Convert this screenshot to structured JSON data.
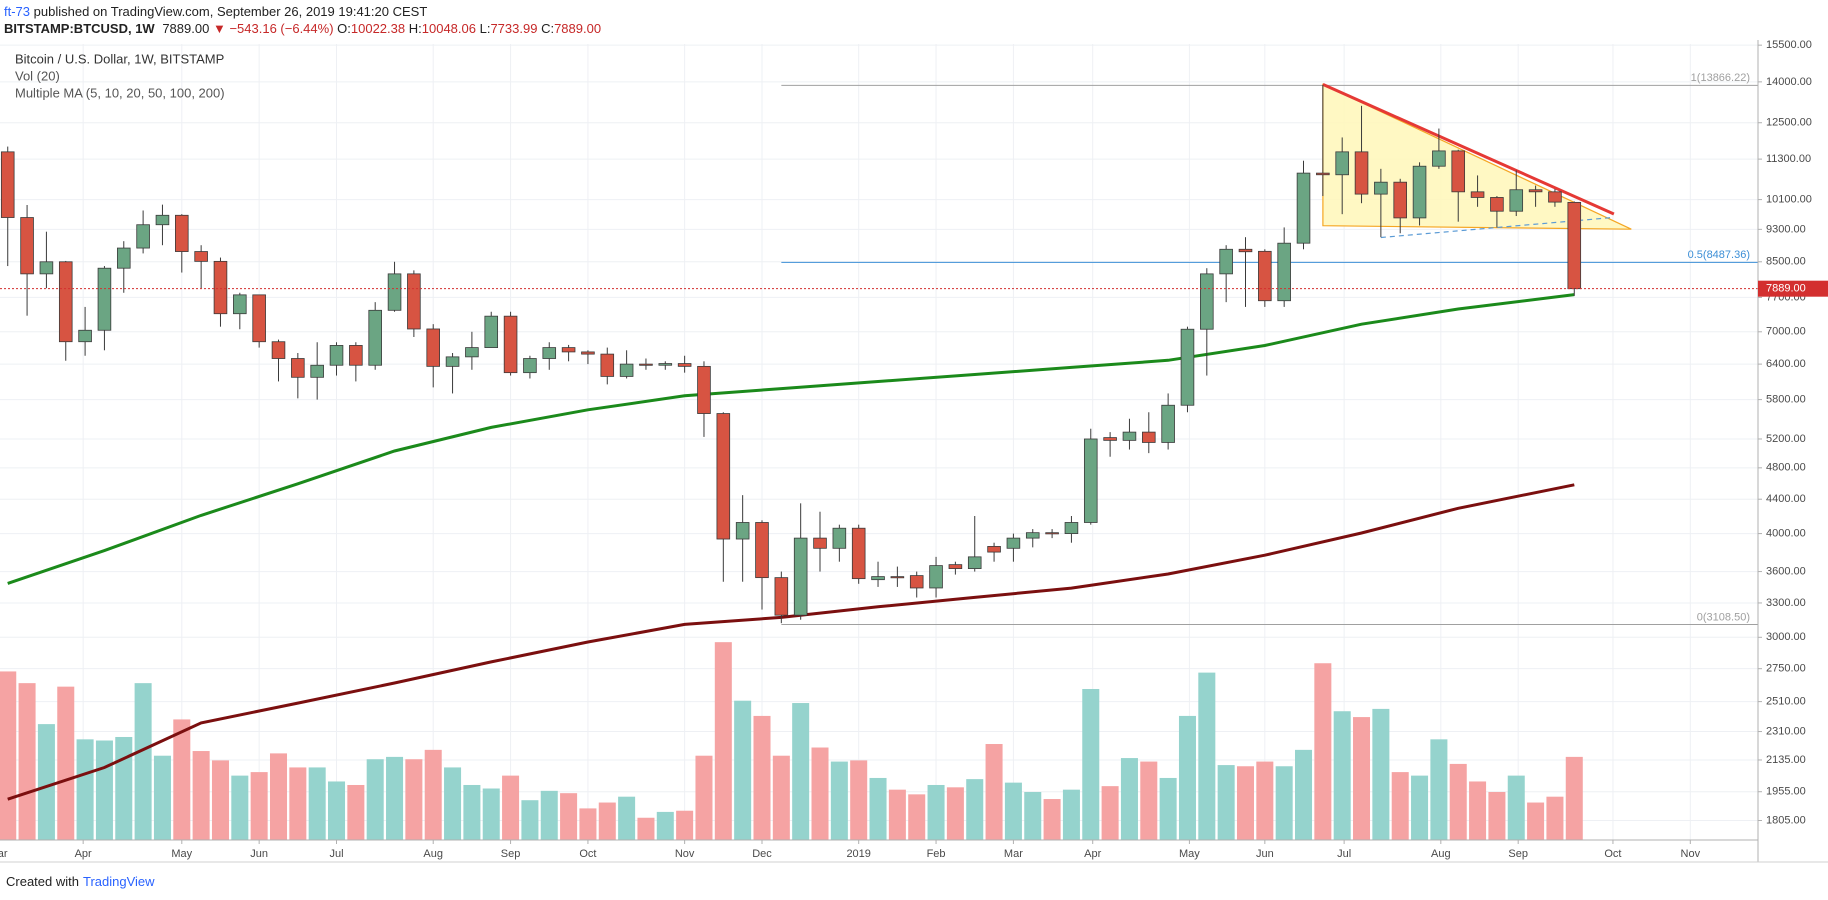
{
  "header": {
    "author": "ft-73",
    "published": "published on TradingView.com, September 26, 2019 19:41:20 CEST",
    "symbol": "BITSTAMP:BTCUSD, 1W",
    "last": "7889.00",
    "change": "−543.16 (−6.44%)",
    "ohlc": [
      {
        "key": "O:",
        "value": "10022.38"
      },
      {
        "key": "H:",
        "value": "10048.06"
      },
      {
        "key": "L:",
        "value": "7733.99"
      },
      {
        "key": "C:",
        "value": "7889.00"
      }
    ]
  },
  "footer": {
    "text": "Created with",
    "brand": "TradingView"
  },
  "chart_data": {
    "type": "candlestick",
    "title": "Bitcoin / U.S. Dollar, 1W, BITSTAMP",
    "indicators": [
      "Vol (20)",
      "Multiple MA (5, 10, 20, 50, 100, 200)"
    ],
    "log_scale": true,
    "grid": true,
    "up_color": "#6ba583",
    "down_color": "#d75442",
    "xlim": [
      -0.4,
      90.5
    ],
    "ylim": [
      1710,
      15550
    ],
    "xticks": [
      {
        "value": -0.5,
        "label": "Mar"
      },
      {
        "value": 3.9,
        "label": "Apr"
      },
      {
        "value": 9.0,
        "label": "May"
      },
      {
        "value": 13.0,
        "label": "Jun"
      },
      {
        "value": 17.0,
        "label": "Jul"
      },
      {
        "value": 22.0,
        "label": "Aug"
      },
      {
        "value": 26.0,
        "label": "Sep"
      },
      {
        "value": 30.0,
        "label": "Oct"
      },
      {
        "value": 35.0,
        "label": "Nov"
      },
      {
        "value": 39.0,
        "label": "Dec"
      },
      {
        "value": 44.0,
        "label": "2019"
      },
      {
        "value": 48.0,
        "label": "Feb"
      },
      {
        "value": 52.0,
        "label": "Mar"
      },
      {
        "value": 56.1,
        "label": "Apr"
      },
      {
        "value": 61.1,
        "label": "May"
      },
      {
        "value": 65.0,
        "label": "Jun"
      },
      {
        "value": 69.1,
        "label": "Jul"
      },
      {
        "value": 74.1,
        "label": "Aug"
      },
      {
        "value": 78.1,
        "label": "Sep"
      },
      {
        "value": 83.0,
        "label": "Oct"
      },
      {
        "value": 87.0,
        "label": "Nov"
      }
    ],
    "yticks": [
      {
        "value": 1805,
        "label": "1805.00"
      },
      {
        "value": 1955,
        "label": "1955.00"
      },
      {
        "value": 2135,
        "label": "2135.00"
      },
      {
        "value": 2310,
        "label": "2310.00"
      },
      {
        "value": 2510,
        "label": "2510.00"
      },
      {
        "value": 2750,
        "label": "2750.00"
      },
      {
        "value": 3000,
        "label": "3000.00"
      },
      {
        "value": 3300,
        "label": "3300.00"
      },
      {
        "value": 3600,
        "label": "3600.00"
      },
      {
        "value": 4000,
        "label": "4000.00"
      },
      {
        "value": 4400,
        "label": "4400.00"
      },
      {
        "value": 4800,
        "label": "4800.00"
      },
      {
        "value": 5200,
        "label": "5200.00"
      },
      {
        "value": 5800,
        "label": "5800.00"
      },
      {
        "value": 6400,
        "label": "6400.00"
      },
      {
        "value": 7000,
        "label": "7000.00"
      },
      {
        "value": 7700,
        "label": "7700.00"
      },
      {
        "value": 8500,
        "label": "8500.00"
      },
      {
        "value": 9300,
        "label": "9300.00"
      },
      {
        "value": 10100,
        "label": "10100.00"
      },
      {
        "value": 11300,
        "label": "11300.00"
      },
      {
        "value": 12500,
        "label": "12500.00"
      },
      {
        "value": 14000,
        "label": "14000.00"
      },
      {
        "value": 15500,
        "label": "15500.00"
      }
    ],
    "candles": {
      "open": [
        11530,
        9610,
        8220,
        8500,
        6810,
        7030,
        8350,
        8830,
        9420,
        9670,
        8745,
        8510,
        7360,
        7755,
        6810,
        6500,
        6170,
        6380,
        6740,
        6380,
        7430,
        8220,
        7055,
        6360,
        6530,
        6700,
        7310,
        6250,
        6500,
        6700,
        6620,
        6580,
        6185,
        6400,
        6380,
        6410,
        6360,
        5580,
        3940,
        4125,
        3540,
        3190,
        3950,
        3840,
        4060,
        3520,
        3550,
        3560,
        3440,
        3670,
        3630,
        3860,
        3840,
        3950,
        4010,
        4000,
        4125,
        5220,
        5180,
        5300,
        5150,
        5710,
        7050,
        8220,
        8800,
        8750,
        7630,
        8950,
        10870,
        10820,
        11530,
        10255,
        10600,
        9600,
        11080,
        11560,
        10320,
        10160,
        9780,
        10380,
        10320,
        10022.38
      ],
      "high": [
        11700,
        9950,
        9240,
        8520,
        7500,
        8400,
        9000,
        9800,
        9960,
        9700,
        8900,
        8600,
        7800,
        7760,
        6850,
        6600,
        6800,
        6800,
        6800,
        7600,
        8500,
        8300,
        7150,
        6600,
        7000,
        7400,
        7400,
        6550,
        6800,
        6750,
        6650,
        6700,
        6650,
        6500,
        6450,
        6550,
        6450,
        5600,
        4450,
        4150,
        3600,
        4350,
        4250,
        4100,
        4100,
        3700,
        3650,
        3600,
        3750,
        3700,
        4200,
        3900,
        4000,
        4050,
        4050,
        4200,
        5350,
        5300,
        5500,
        5600,
        5900,
        7100,
        8350,
        8900,
        9100,
        8800,
        9350,
        11250,
        13880,
        12000,
        13100,
        11000,
        10700,
        11200,
        12300,
        11600,
        10800,
        10200,
        10950,
        10500,
        10400,
        10048.06
      ],
      "low": [
        8400,
        7320,
        7900,
        6460,
        6550,
        6650,
        7800,
        8700,
        8900,
        8250,
        7900,
        7100,
        7050,
        6700,
        6100,
        5820,
        5800,
        6200,
        6100,
        6300,
        7400,
        6900,
        6000,
        5900,
        6300,
        6700,
        6200,
        6150,
        6300,
        6450,
        6400,
        6050,
        6150,
        6300,
        6300,
        6250,
        5230,
        3500,
        3500,
        3240,
        3120,
        3150,
        3600,
        3700,
        3480,
        3450,
        3450,
        3350,
        3350,
        3570,
        3600,
        3700,
        3700,
        3850,
        3950,
        3900,
        4100,
        4950,
        5050,
        5000,
        5050,
        5600,
        6200,
        7600,
        7500,
        7500,
        7500,
        8800,
        10200,
        9700,
        10000,
        9100,
        9200,
        9400,
        11000,
        9500,
        9900,
        9350,
        9650,
        9900,
        9900,
        7733.99
      ],
      "close": [
        9610,
        8220,
        8500,
        6810,
        7030,
        8350,
        8830,
        9420,
        9670,
        8745,
        8510,
        7360,
        7755,
        6810,
        6500,
        6170,
        6380,
        6740,
        6380,
        7430,
        8220,
        7055,
        6360,
        6530,
        6700,
        7310,
        6250,
        6500,
        6700,
        6620,
        6580,
        6185,
        6400,
        6380,
        6410,
        6360,
        5580,
        3940,
        4125,
        3540,
        3190,
        3950,
        3840,
        4060,
        3530,
        3550,
        3540,
        3440,
        3660,
        3630,
        3750,
        3800,
        3950,
        4010,
        4000,
        4125,
        5200,
        5180,
        5300,
        5150,
        5710,
        7050,
        8220,
        8800,
        8740,
        7630,
        8950,
        10870,
        10820,
        11530,
        10255,
        10600,
        9600,
        11080,
        11560,
        10320,
        10160,
        9780,
        10380,
        10320,
        10030,
        7889
      ]
    },
    "volume": {
      "up_color": "#95d3cd",
      "down_color": "#f5a3a3",
      "ylim": [
        0,
        680
      ],
      "values": [
        144,
        134,
        99,
        131,
        86,
        85,
        88,
        134,
        72,
        103,
        76,
        68,
        55,
        58,
        74,
        62,
        62,
        50,
        47,
        69,
        71,
        69,
        77,
        62,
        47,
        44,
        55,
        34,
        42,
        40,
        27,
        32,
        37,
        19,
        24,
        25,
        72,
        169,
        119,
        106,
        72,
        117,
        79,
        67,
        68,
        53,
        43,
        39,
        47,
        45,
        52,
        82,
        49,
        41,
        35,
        43,
        129,
        46,
        70,
        67,
        53,
        106,
        143,
        64,
        63,
        67,
        63,
        77,
        151,
        110,
        105,
        112,
        58,
        55,
        86,
        65,
        50,
        41,
        55,
        32,
        37,
        71
      ]
    },
    "moving_averages": [
      {
        "color": "#1b8a1b",
        "x": [
          0,
          5,
          10,
          15,
          20,
          25,
          30,
          35,
          40,
          45,
          50,
          55,
          60,
          65,
          70,
          75,
          81
        ],
        "values": [
          3484,
          3816,
          4207,
          4592,
          5030,
          5370,
          5639,
          5862,
          5979,
          6098,
          6219,
          6342,
          6468,
          6739,
          7150,
          7456,
          7760
        ]
      },
      {
        "color": "#7b0f0f",
        "x": [
          0,
          5,
          10,
          15,
          20,
          25,
          30,
          35,
          40,
          45,
          50,
          55,
          60,
          65,
          70,
          75,
          81
        ],
        "values": [
          1915,
          2091,
          2366,
          2500,
          2643,
          2802,
          2961,
          3109,
          3170,
          3265,
          3351,
          3439,
          3576,
          3767,
          4007,
          4291,
          4579
        ]
      }
    ],
    "fib_levels": {
      "x": 40,
      "values": [
        13866.22,
        8487.36,
        3108.5
      ],
      "value_labels": [
        "1(13866.22)",
        "0.5(8487.36)",
        "0(3108.50)"
      ],
      "colors": [
        "#a0a0a0",
        "#3d8fd6",
        "#a0a0a0"
      ]
    },
    "drawings": [
      {
        "type": "polygon",
        "color": "#f5a623",
        "fill": "#fff7b8",
        "x": [
          68,
          83.95,
          68
        ],
        "values": [
          13900,
          9303,
          9394
        ]
      },
      {
        "type": "line",
        "color": "#e53935",
        "x": [
          68,
          83.05
        ],
        "values": [
          13900,
          9705
        ]
      },
      {
        "type": "dashed",
        "color": "#5b9bd5",
        "x": [
          71,
          83
        ],
        "values": [
          9091,
          9610
        ]
      }
    ],
    "last_price": {
      "value": 7889,
      "label": "7889.00",
      "color": "#d32f2f"
    }
  }
}
